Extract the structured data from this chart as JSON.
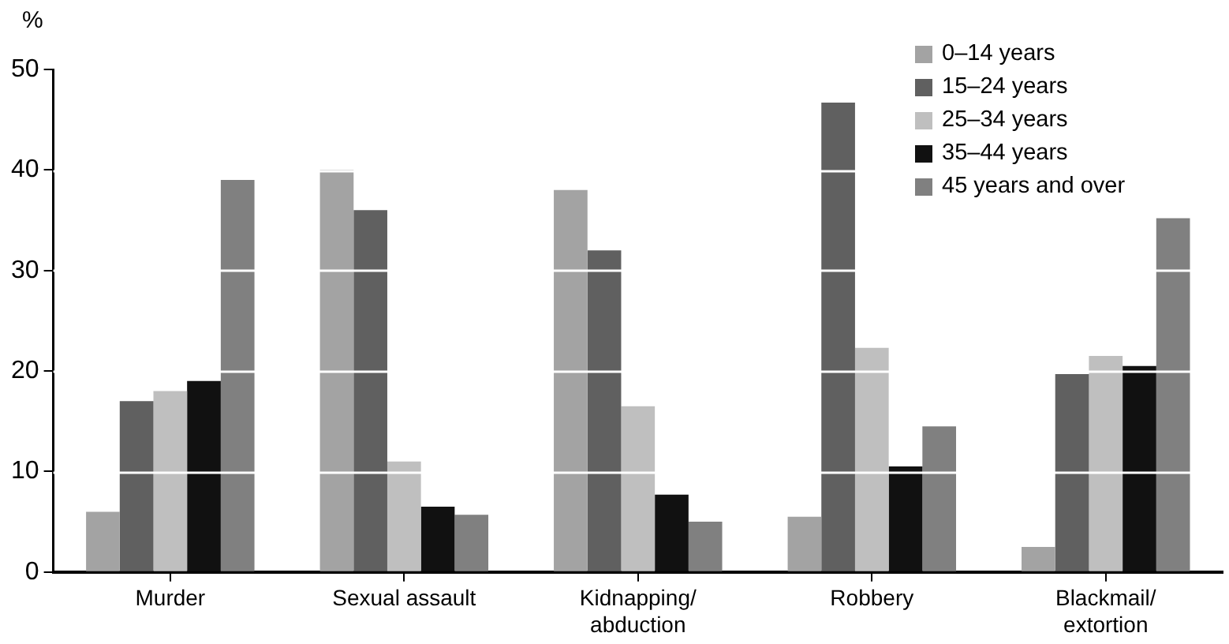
{
  "chart_data": {
    "type": "bar",
    "ylabel": "%",
    "categories": [
      "Murder",
      "Sexual assault",
      "Kidnapping/abduction",
      "Robbery",
      "Blackmail/extortion"
    ],
    "series": [
      {
        "name": "0–14 years",
        "color": "#a3a3a3",
        "values": [
          6,
          40,
          38,
          5.5,
          2.5
        ]
      },
      {
        "name": "15–24 years",
        "color": "#606060",
        "values": [
          17,
          36,
          32,
          46.7,
          19.7
        ]
      },
      {
        "name": "25–34 years",
        "color": "#bfbfbf",
        "values": [
          18,
          11,
          16.5,
          22.3,
          21.5
        ]
      },
      {
        "name": "35–44 years",
        "color": "#111111",
        "values": [
          19,
          6.5,
          7.7,
          10.5,
          20.5
        ]
      },
      {
        "name": "45 years and over",
        "color": "#808080",
        "values": [
          39,
          5.7,
          5,
          14.5,
          35.2
        ]
      }
    ],
    "ylim": [
      0,
      50
    ],
    "yticks": [
      0,
      10,
      20,
      30,
      40,
      50
    ],
    "grid": "y",
    "legend": "top right"
  }
}
